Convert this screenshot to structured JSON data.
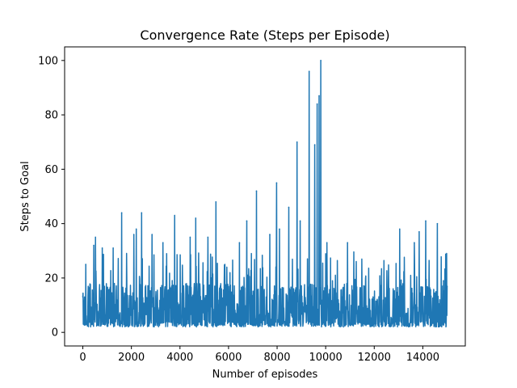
{
  "chart_data": {
    "type": "line",
    "title": "Convergence Rate (Steps per Episode)",
    "xlabel": "Number of episodes",
    "ylabel": "Steps to Goal",
    "xlim": [
      -750,
      15750
    ],
    "ylim": [
      -5,
      105
    ],
    "xticks": [
      0,
      2000,
      4000,
      6000,
      8000,
      10000,
      12000,
      14000
    ],
    "yticks": [
      0,
      20,
      40,
      60,
      80,
      100
    ],
    "grid": false,
    "legend": "none",
    "series_color": "#1f77b4",
    "n_episodes": 15000,
    "baseline_min": 2,
    "typical_band": [
      2,
      18
    ],
    "peaks": [
      {
        "x": 0,
        "y": 13
      },
      {
        "x": 120,
        "y": 25
      },
      {
        "x": 450,
        "y": 32
      },
      {
        "x": 520,
        "y": 35
      },
      {
        "x": 800,
        "y": 31
      },
      {
        "x": 1250,
        "y": 31
      },
      {
        "x": 1600,
        "y": 44
      },
      {
        "x": 2100,
        "y": 36
      },
      {
        "x": 2200,
        "y": 38
      },
      {
        "x": 2420,
        "y": 44
      },
      {
        "x": 2850,
        "y": 36
      },
      {
        "x": 3300,
        "y": 33
      },
      {
        "x": 3780,
        "y": 43
      },
      {
        "x": 4420,
        "y": 35
      },
      {
        "x": 4650,
        "y": 42
      },
      {
        "x": 5150,
        "y": 35
      },
      {
        "x": 5480,
        "y": 48
      },
      {
        "x": 6450,
        "y": 33
      },
      {
        "x": 6750,
        "y": 41
      },
      {
        "x": 7150,
        "y": 52
      },
      {
        "x": 7700,
        "y": 36
      },
      {
        "x": 7980,
        "y": 55
      },
      {
        "x": 8100,
        "y": 38
      },
      {
        "x": 8480,
        "y": 46
      },
      {
        "x": 8820,
        "y": 70
      },
      {
        "x": 8950,
        "y": 41
      },
      {
        "x": 9320,
        "y": 96
      },
      {
        "x": 9550,
        "y": 69
      },
      {
        "x": 9650,
        "y": 84
      },
      {
        "x": 9730,
        "y": 87
      },
      {
        "x": 9800,
        "y": 100
      },
      {
        "x": 10050,
        "y": 33
      },
      {
        "x": 10900,
        "y": 33
      },
      {
        "x": 13050,
        "y": 38
      },
      {
        "x": 13650,
        "y": 33
      },
      {
        "x": 13850,
        "y": 37
      },
      {
        "x": 14120,
        "y": 41
      },
      {
        "x": 14600,
        "y": 40
      },
      {
        "x": 14850,
        "y": 19
      },
      {
        "x": 15000,
        "y": 17
      }
    ]
  }
}
